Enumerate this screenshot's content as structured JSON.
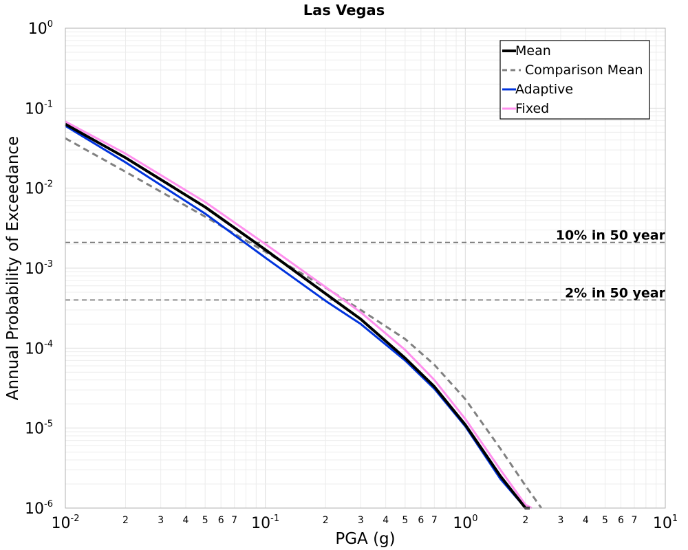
{
  "chart_data": {
    "type": "line",
    "title": "Las Vegas",
    "xlabel": "PGA (g)",
    "ylabel": "Annual Probability of Exceedance",
    "xscale": "log",
    "yscale": "log",
    "xlim": [
      0.01,
      10
    ],
    "ylim": [
      1e-06,
      1
    ],
    "grid": true,
    "legend_position": "top-right",
    "x_ticks": [
      {
        "base": "10",
        "exp": "-2"
      },
      {
        "base": "10",
        "exp": "-1"
      },
      {
        "base": "10",
        "exp": "0"
      },
      {
        "base": "10",
        "exp": "1"
      }
    ],
    "x_minor_labels": [
      "2",
      "3",
      "4",
      "5",
      "6",
      "7"
    ],
    "y_ticks": [
      {
        "base": "10",
        "exp": "0"
      },
      {
        "base": "10",
        "exp": "-1"
      },
      {
        "base": "10",
        "exp": "-2"
      },
      {
        "base": "10",
        "exp": "-3"
      },
      {
        "base": "10",
        "exp": "-4"
      },
      {
        "base": "10",
        "exp": "-5"
      },
      {
        "base": "10",
        "exp": "-6"
      }
    ],
    "reference_lines": [
      {
        "label": "10% in 50 year",
        "y": 0.0021
      },
      {
        "label": "2% in 50 year",
        "y": 0.0004
      }
    ],
    "series": [
      {
        "name": "Mean",
        "color": "#000000",
        "style": "solid",
        "width": 4,
        "x": [
          0.01,
          0.02,
          0.05,
          0.1,
          0.2,
          0.3,
          0.5,
          0.7,
          1.0,
          1.5,
          2.0,
          2.1
        ],
        "y": [
          0.063,
          0.024,
          0.0058,
          0.0017,
          0.00048,
          0.00023,
          7.5e-05,
          3.3e-05,
          1.1e-05,
          2.5e-06,
          9.5e-07,
          8e-07
        ]
      },
      {
        "name": "Comparison Mean",
        "color": "#808080",
        "style": "dashed",
        "width": 3,
        "x": [
          0.01,
          0.02,
          0.05,
          0.1,
          0.2,
          0.3,
          0.5,
          0.7,
          1.0,
          1.5,
          2.0,
          2.4
        ],
        "y": [
          0.042,
          0.016,
          0.0044,
          0.0016,
          0.00057,
          0.0003,
          0.00013,
          6.2e-05,
          2.3e-05,
          5.5e-06,
          1.9e-06,
          9e-07
        ]
      },
      {
        "name": "Adaptive",
        "color": "#0033dd",
        "style": "solid",
        "width": 3,
        "x": [
          0.01,
          0.02,
          0.05,
          0.1,
          0.2,
          0.3,
          0.5,
          0.7,
          1.0,
          1.5,
          2.0,
          2.05
        ],
        "y": [
          0.06,
          0.021,
          0.0048,
          0.00135,
          0.00039,
          0.0002,
          7e-05,
          3.1e-05,
          1.05e-05,
          2.3e-06,
          9e-07,
          8e-07
        ]
      },
      {
        "name": "Fixed",
        "color": "#ff90ee",
        "style": "solid",
        "width": 3,
        "x": [
          0.01,
          0.02,
          0.05,
          0.1,
          0.2,
          0.3,
          0.5,
          0.7,
          1.0,
          1.5,
          2.0,
          2.15
        ],
        "y": [
          0.068,
          0.027,
          0.0067,
          0.002,
          0.00058,
          0.00028,
          9.5e-05,
          4e-05,
          1.3e-05,
          3e-06,
          1.1e-06,
          8e-07
        ]
      }
    ]
  }
}
